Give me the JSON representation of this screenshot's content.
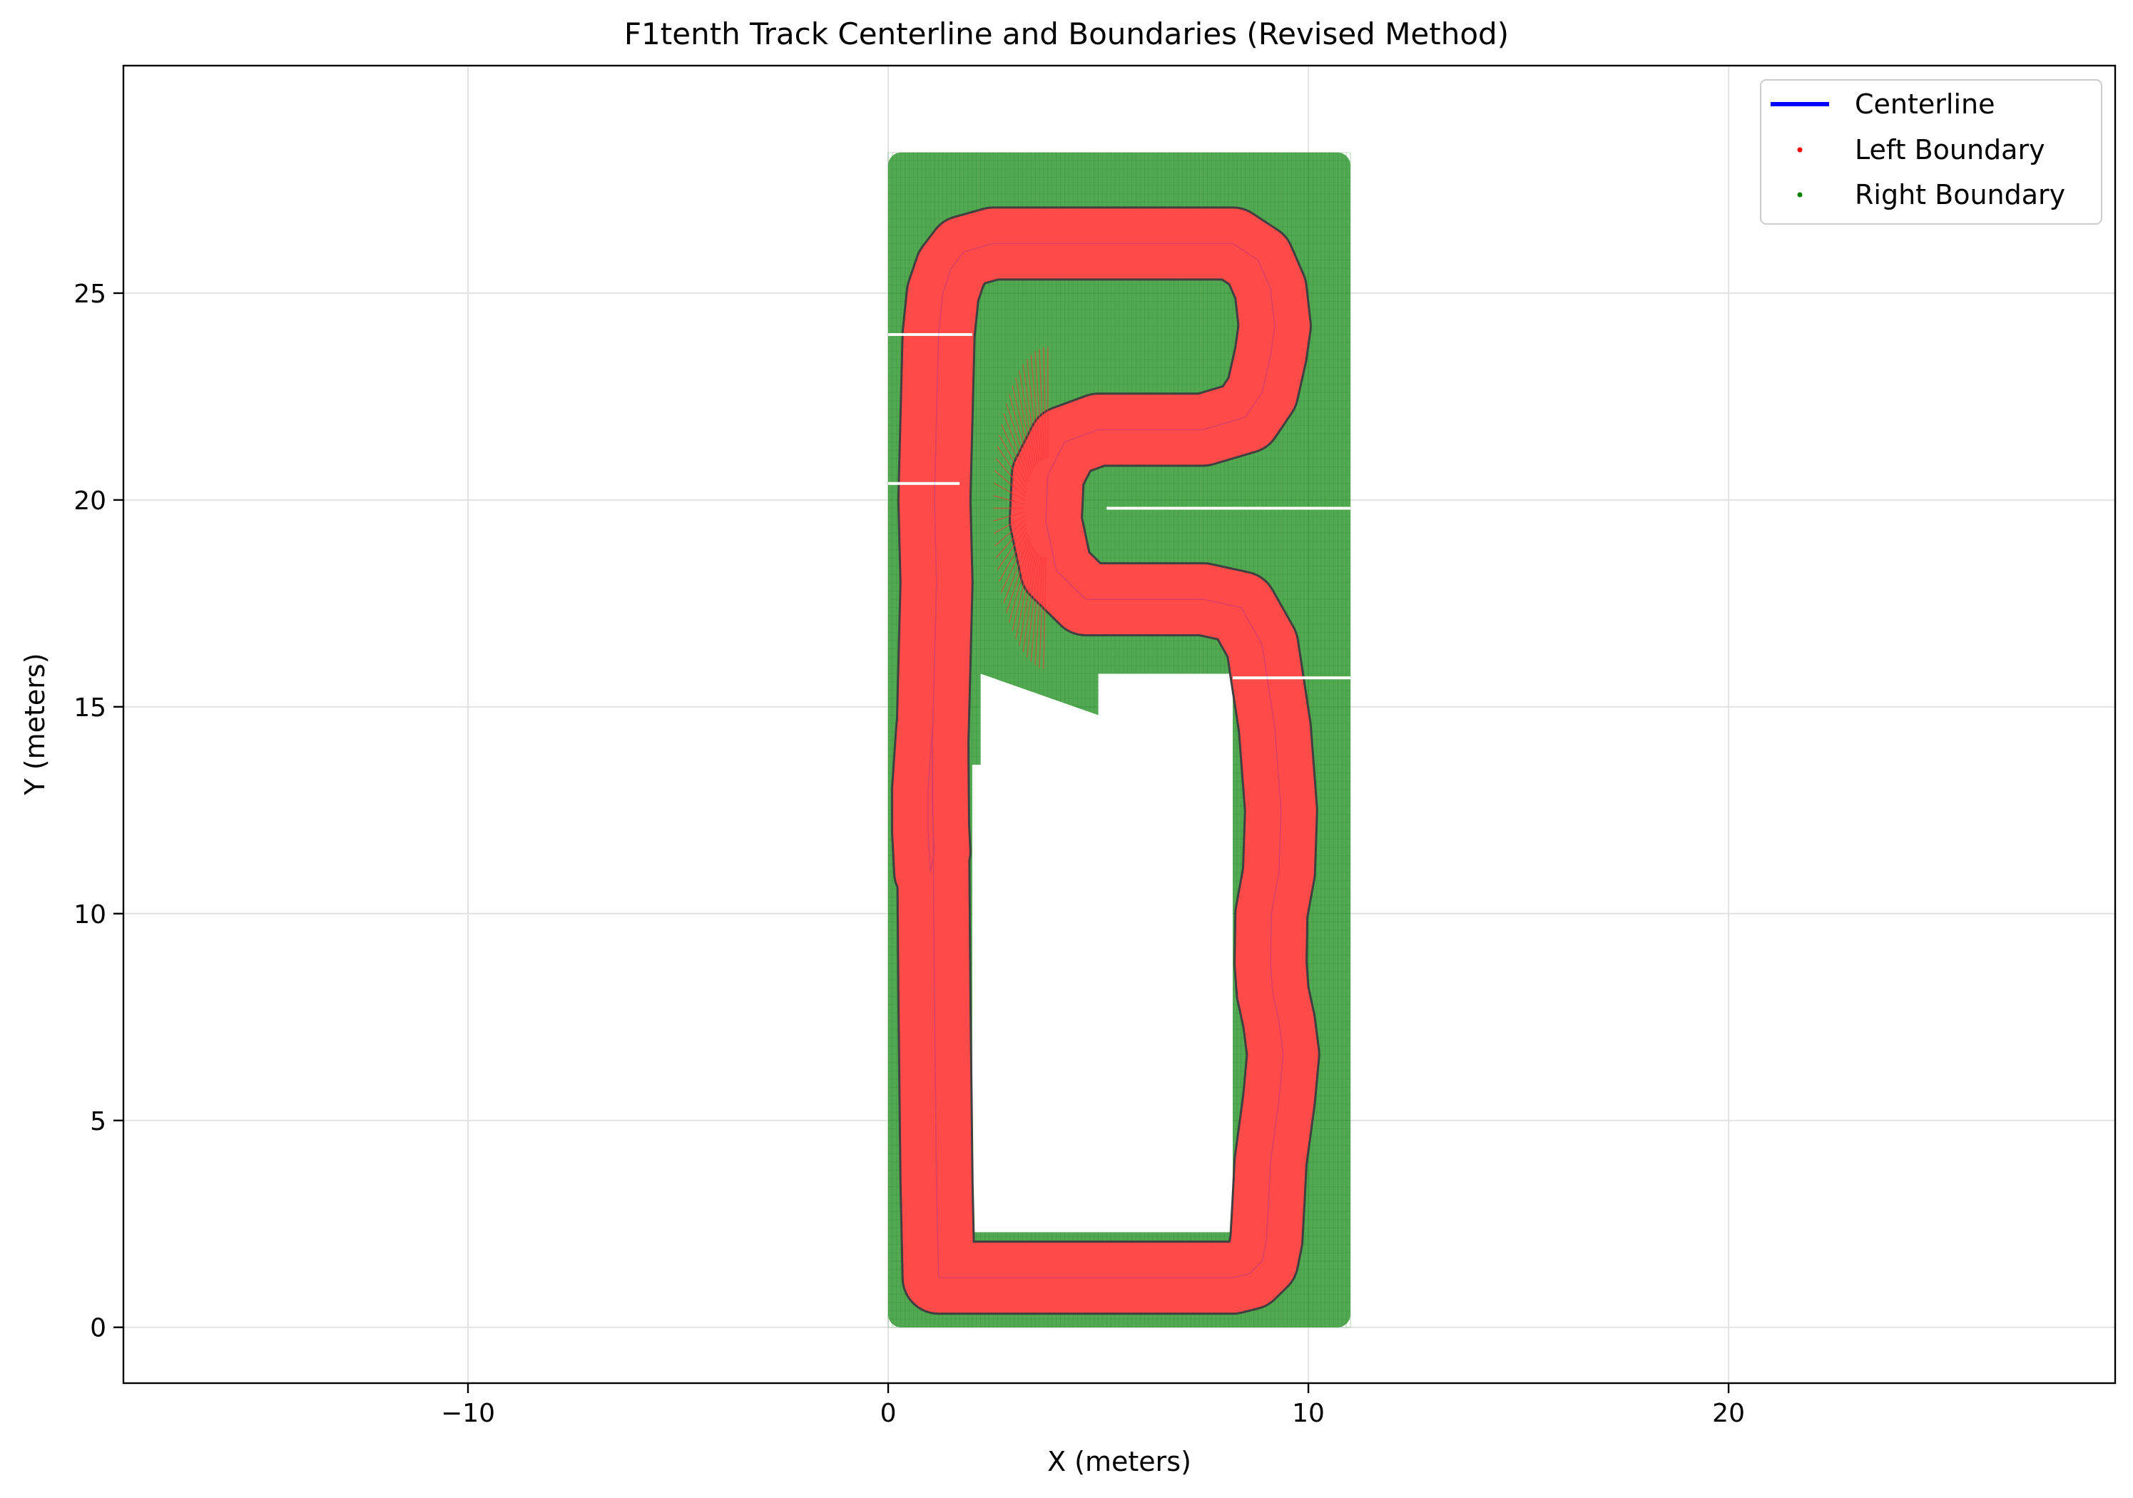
{
  "chart_data": {
    "type": "line",
    "title": "F1tenth Track Centerline and Boundaries (Revised Method)",
    "xlabel": "X (meters)",
    "ylabel": "Y (meters)",
    "xlim": [
      -18.2,
      29.2
    ],
    "ylim": [
      -1.35,
      30.5
    ],
    "xticks": [
      -10,
      0,
      10,
      20
    ],
    "yticks": [
      0,
      5,
      10,
      15,
      20,
      25
    ],
    "grid": true,
    "legend_position": "top-right",
    "legend": [
      "Centerline",
      "Left Boundary",
      "Right Boundary"
    ],
    "colors": {
      "centerline": "#0000ff",
      "left": "#ff0000",
      "right": "#008000",
      "outline": "#404040"
    },
    "series": [
      {
        "name": "Centerline",
        "x": [
          1.2,
          1.6,
          2.5,
          4,
          6,
          7.5,
          8.2,
          8.6,
          8.9,
          9.0,
          9.05,
          9.1,
          9.3,
          9.4,
          9.3,
          9.15,
          9.1,
          9.12,
          9.3,
          9.35,
          9.2,
          8.9,
          8.4,
          7.5,
          6.0,
          4.7,
          4.0,
          3.75,
          3.8,
          4.2,
          5.0,
          6.2,
          7.5,
          8.5,
          8.9,
          9.1,
          9.2,
          9.1,
          8.8,
          8.2,
          7.5,
          6,
          4,
          2.5,
          1.8,
          1.5,
          1.3,
          1.2,
          1.15,
          1.1,
          1.15,
          1.1,
          1.05,
          1.05,
          1.1,
          1.0,
          0.95,
          0.95,
          1.05,
          1.1,
          1.15,
          1.2
        ],
        "y": [
          1.2,
          1.2,
          1.2,
          1.2,
          1.2,
          1.2,
          1.2,
          1.3,
          1.6,
          2.1,
          3,
          4,
          5.5,
          6.6,
          7.4,
          8.1,
          8.8,
          10,
          11,
          12.5,
          14.5,
          16.5,
          17.4,
          17.6,
          17.6,
          17.6,
          18.3,
          19.5,
          20.6,
          21.4,
          21.7,
          21.7,
          21.7,
          22,
          22.6,
          23.5,
          24.2,
          25.1,
          25.8,
          26.2,
          26.2,
          26.2,
          26.2,
          26.2,
          26,
          25.6,
          25,
          24,
          22,
          20,
          18,
          16,
          14,
          12.5,
          11.5,
          11,
          12,
          13,
          14.5,
          8,
          3.5,
          1.2
        ]
      },
      {
        "name": "Left Boundary",
        "x": [],
        "y": []
      },
      {
        "name": "Right Boundary",
        "x": [],
        "y": []
      }
    ]
  }
}
